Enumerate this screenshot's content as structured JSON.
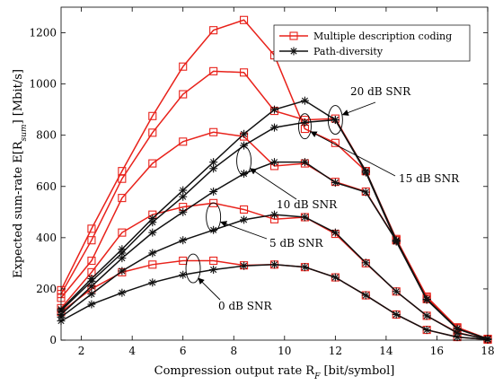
{
  "chart_data": {
    "type": "line",
    "xlabel": "Compression output rate R_F [bit/symbol]",
    "ylabel": "Expected sum-rate E[R_sum] [Mbit/s]",
    "xlim": [
      1.2,
      18
    ],
    "ylim": [
      0,
      1300
    ],
    "xticks": [
      2,
      4,
      6,
      8,
      10,
      12,
      14,
      16,
      18
    ],
    "yticks": [
      0,
      200,
      400,
      600,
      800,
      1000,
      1200
    ],
    "legend": {
      "position": "top-right",
      "entries": [
        "Multiple description coding",
        "Path-diversity"
      ]
    },
    "x": [
      1.2,
      2.4,
      3.6,
      4.8,
      6.0,
      7.2,
      8.4,
      9.6,
      10.8,
      12.0,
      13.2,
      14.4,
      15.6,
      16.8,
      18.0
    ],
    "series": [
      {
        "name": "Multiple description coding",
        "snr": "20 dB SNR",
        "color": "#e8221b",
        "marker": "square",
        "values": [
          195,
          435,
          660,
          875,
          1068,
          1210,
          1250,
          1112,
          825,
          770,
          660,
          395,
          170,
          50,
          5
        ]
      },
      {
        "name": "Multiple description coding",
        "snr": "15 dB SNR",
        "color": "#e8221b",
        "marker": "square",
        "values": [
          180,
          390,
          630,
          810,
          960,
          1050,
          1045,
          895,
          860,
          865,
          660,
          390,
          165,
          48,
          5
        ]
      },
      {
        "name": "Multiple description coding",
        "snr": "10 dB SNR",
        "color": "#e8221b",
        "marker": "square",
        "values": [
          165,
          310,
          555,
          690,
          775,
          812,
          795,
          680,
          690,
          618,
          580,
          390,
          160,
          45,
          4
        ]
      },
      {
        "name": "Multiple description coding",
        "snr": "5 dB SNR",
        "color": "#e8221b",
        "marker": "square",
        "values": [
          125,
          265,
          420,
          490,
          520,
          535,
          510,
          472,
          480,
          415,
          300,
          190,
          95,
          30,
          3
        ]
      },
      {
        "name": "Multiple description coding",
        "snr": "0 dB SNR",
        "color": "#e8221b",
        "marker": "square",
        "values": [
          110,
          200,
          265,
          295,
          310,
          310,
          292,
          295,
          285,
          245,
          175,
          100,
          40,
          12,
          2
        ]
      },
      {
        "name": "Path-diversity",
        "snr": "20 dB SNR",
        "color": "#111111",
        "marker": "star",
        "values": [
          120,
          240,
          355,
          475,
          585,
          695,
          805,
          900,
          935,
          860,
          660,
          390,
          160,
          45,
          5
        ]
      },
      {
        "name": "Path-diversity",
        "snr": "15 dB SNR",
        "color": "#111111",
        "marker": "star",
        "values": [
          115,
          230,
          340,
          460,
          560,
          670,
          760,
          830,
          850,
          860,
          655,
          385,
          158,
          44,
          5
        ]
      },
      {
        "name": "Path-diversity",
        "snr": "10 dB SNR",
        "color": "#111111",
        "marker": "star",
        "values": [
          100,
          210,
          320,
          420,
          500,
          580,
          650,
          695,
          695,
          615,
          578,
          388,
          158,
          44,
          4
        ]
      },
      {
        "name": "Path-diversity",
        "snr": "5 dB SNR",
        "color": "#111111",
        "marker": "star",
        "values": [
          90,
          180,
          270,
          340,
          390,
          430,
          470,
          490,
          480,
          420,
          302,
          190,
          95,
          28,
          3
        ]
      },
      {
        "name": "Path-diversity",
        "snr": "0 dB SNR",
        "color": "#111111",
        "marker": "star",
        "values": [
          75,
          140,
          185,
          225,
          255,
          275,
          290,
          295,
          285,
          245,
          175,
          100,
          40,
          12,
          2
        ]
      }
    ],
    "annotations": [
      {
        "label": "20 dB SNR",
        "target": [
          12.0,
          860
        ]
      },
      {
        "label": "15 dB SNR",
        "target": [
          10.8,
          835
        ]
      },
      {
        "label": "10 dB SNR",
        "target": [
          8.4,
          700
        ]
      },
      {
        "label": "5 dB SNR",
        "target": [
          7.2,
          480
        ]
      },
      {
        "label": "0 dB SNR",
        "target": [
          6.4,
          280
        ]
      }
    ]
  }
}
